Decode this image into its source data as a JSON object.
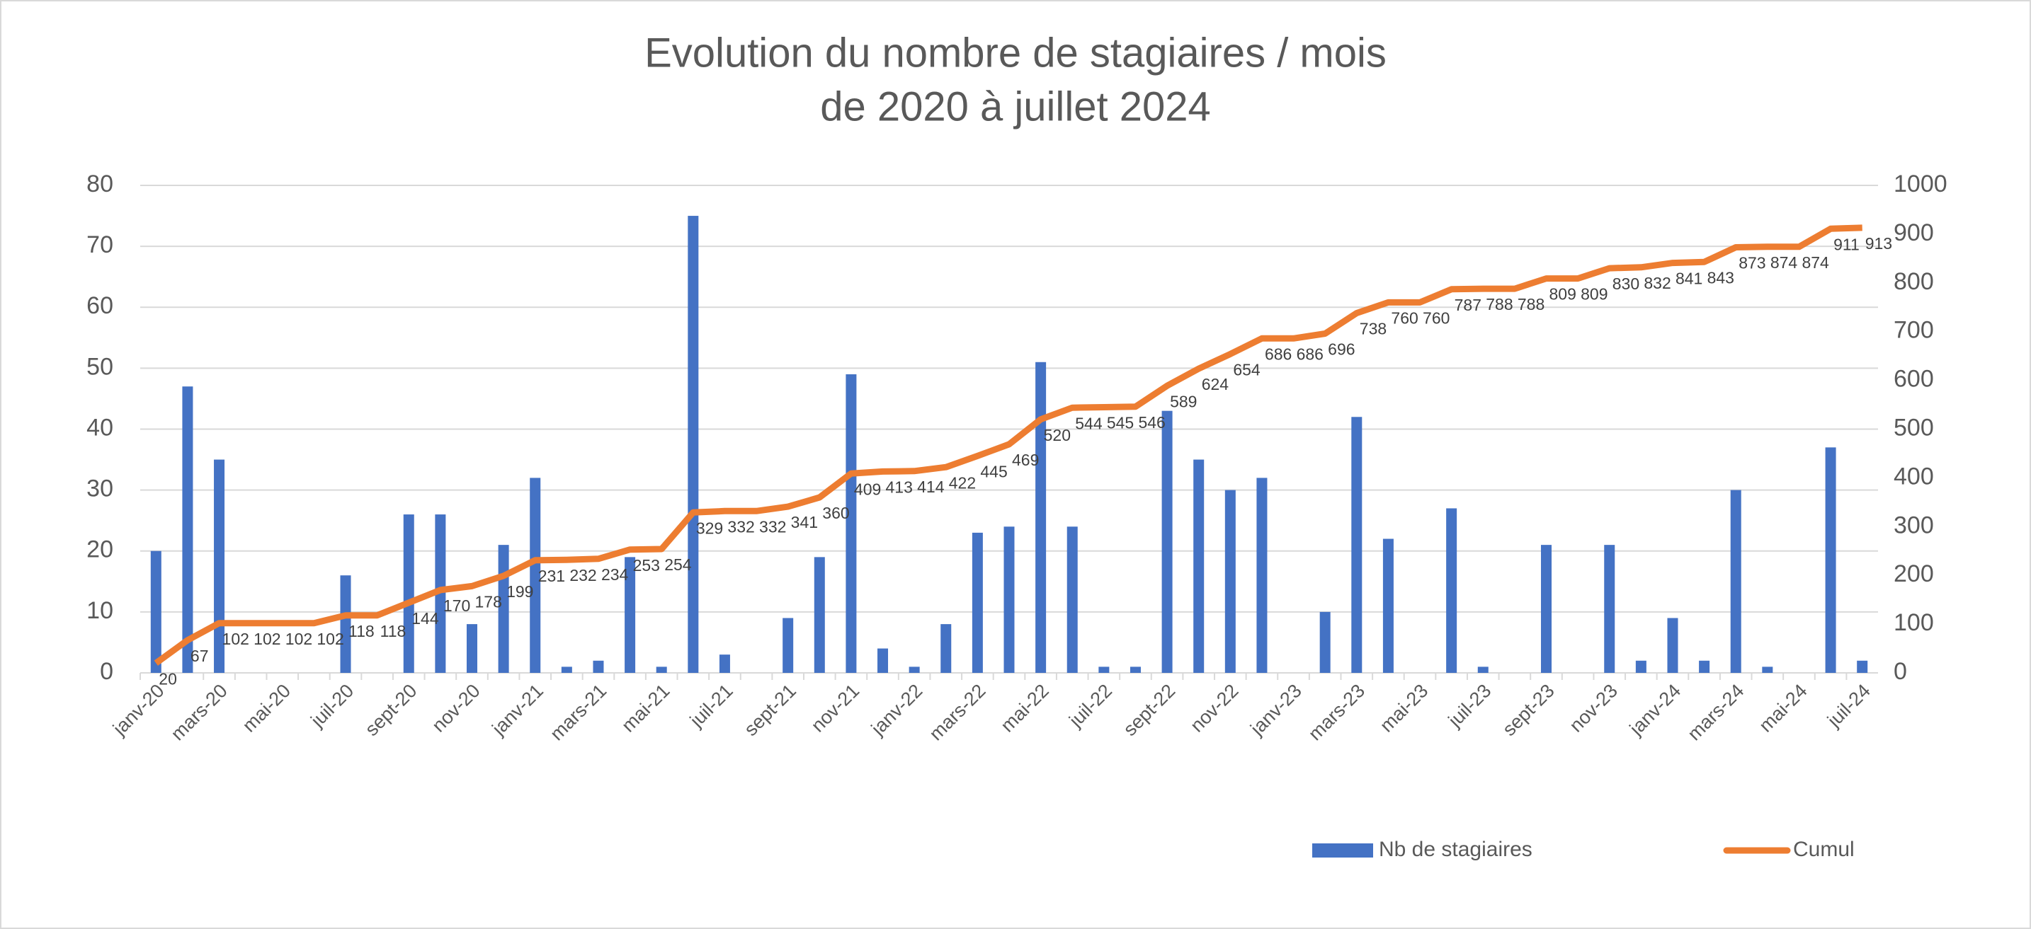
{
  "chart_data": {
    "type": "bar-line",
    "title": "Evolution du nombre de stagiaires / mois",
    "subtitle": "de 2020 à juillet 2024",
    "categories": [
      "janv-20",
      null,
      "mars-20",
      null,
      "mai-20",
      null,
      "juil-20",
      null,
      "sept-20",
      null,
      "nov-20",
      null,
      "janv-21",
      null,
      "mars-21",
      null,
      "mai-21",
      null,
      "juil-21",
      null,
      "sept-21",
      null,
      "nov-21",
      null,
      "janv-22",
      null,
      "mars-22",
      null,
      "mai-22",
      null,
      "juil-22",
      null,
      "sept-22",
      null,
      "nov-22",
      null,
      "janv-23",
      null,
      "mars-23",
      null,
      "mai-23",
      null,
      "juil-23",
      null,
      "sept-23",
      null,
      "nov-23",
      null,
      "janv-24",
      null,
      "mars-24",
      null,
      "mai-24",
      null,
      "juil-24"
    ],
    "series": [
      {
        "name": "Nb de stagiaires",
        "type": "bar",
        "color": "#4472c4",
        "values": [
          20,
          47,
          35,
          0,
          0,
          0,
          16,
          0,
          26,
          26,
          8,
          21,
          32,
          1,
          2,
          19,
          1,
          75,
          3,
          0,
          9,
          19,
          49,
          4,
          1,
          8,
          23,
          24,
          51,
          24,
          1,
          1,
          43,
          35,
          30,
          32,
          0,
          10,
          42,
          22,
          0,
          27,
          1,
          0,
          21,
          0,
          21,
          2,
          9,
          2,
          30,
          1,
          0,
          37,
          2
        ]
      },
      {
        "name": "Cumul",
        "type": "line",
        "axis": "y2",
        "color": "#ed7d31",
        "data_labels": true,
        "values": [
          20,
          67,
          102,
          102,
          102,
          102,
          118,
          118,
          144,
          170,
          178,
          199,
          231,
          232,
          234,
          253,
          254,
          329,
          332,
          332,
          341,
          360,
          409,
          413,
          414,
          422,
          445,
          469,
          520,
          544,
          545,
          546,
          589,
          624,
          654,
          686,
          686,
          696,
          738,
          760,
          760,
          787,
          788,
          788,
          809,
          809,
          830,
          832,
          841,
          843,
          873,
          874,
          874,
          911,
          913
        ]
      }
    ],
    "ylim": [
      0,
      80
    ],
    "yticks": [
      0,
      10,
      20,
      30,
      40,
      50,
      60,
      70,
      80
    ],
    "y2lim": [
      0,
      1000
    ],
    "y2ticks": [
      0,
      100,
      200,
      300,
      400,
      500,
      600,
      700,
      800,
      900,
      1000
    ],
    "grid": true,
    "legend": "bottom"
  }
}
